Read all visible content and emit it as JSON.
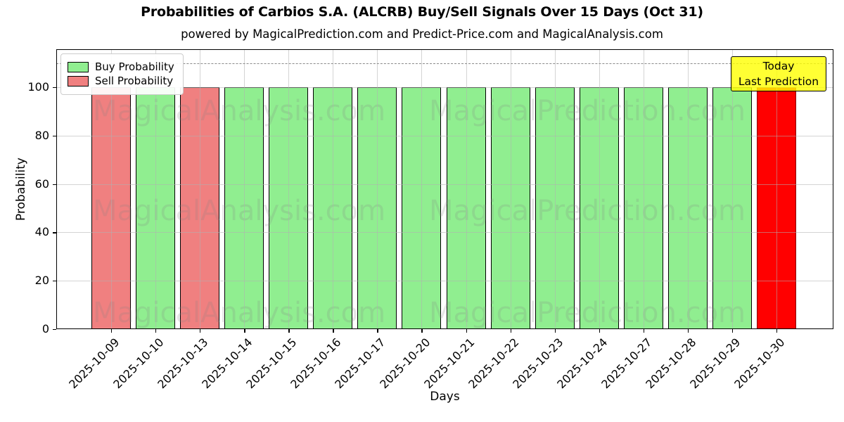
{
  "title": "Probabilities of Carbios S.A. (ALCRB) Buy/Sell Signals Over 15 Days (Oct 31)",
  "subtitle": "powered by MagicalPrediction.com and Predict-Price.com and MagicalAnalysis.com",
  "axes": {
    "xlabel": "Days",
    "ylabel": "Probability",
    "yticks": [
      0,
      20,
      40,
      60,
      80,
      100
    ],
    "ylim": [
      0,
      116
    ],
    "grid": true,
    "dashed_guideline_y": 110
  },
  "legend": {
    "position": "upper-left",
    "items": [
      {
        "label": "Buy Probability",
        "color": "#90EE90"
      },
      {
        "label": "Sell Probability",
        "color": "#F08080"
      }
    ]
  },
  "annotation": {
    "line1": "Today",
    "line2": "Last Prediction",
    "bg_color": "#FFFF00",
    "border_color": "#000000"
  },
  "watermarks": {
    "left_text": "MagicalAnalysis.com",
    "right_text": "MagicalPrediction.com"
  },
  "colors": {
    "buy": "#90EE90",
    "sell": "#F08080",
    "today": "#FF0000",
    "bar_edge": "#000000",
    "today_edge": "#8B0000",
    "grid": "#b0b0b0",
    "dashed_line": "#8a8a8a",
    "watermark": "#808080",
    "annotation_bg": "#FFFF00"
  },
  "chart_data": {
    "type": "bar",
    "title": "Probabilities of Carbios S.A. (ALCRB) Buy/Sell Signals Over 15 Days (Oct 31)",
    "xlabel": "Days",
    "ylabel": "Probability",
    "ylim": [
      0,
      116
    ],
    "grid": true,
    "legend_position": "upper-left",
    "dashed_guideline_y": 110,
    "categories": [
      "2025-10-09",
      "2025-10-10",
      "2025-10-13",
      "2025-10-14",
      "2025-10-15",
      "2025-10-16",
      "2025-10-17",
      "2025-10-20",
      "2025-10-21",
      "2025-10-22",
      "2025-10-23",
      "2025-10-24",
      "2025-10-27",
      "2025-10-28",
      "2025-10-29",
      "2025-10-30"
    ],
    "values": [
      100,
      100,
      100,
      100,
      100,
      100,
      100,
      100,
      100,
      100,
      100,
      100,
      100,
      100,
      100,
      100
    ],
    "signals": [
      "sell",
      "buy",
      "sell",
      "buy",
      "buy",
      "buy",
      "buy",
      "buy",
      "buy",
      "buy",
      "buy",
      "buy",
      "buy",
      "buy",
      "buy",
      "today"
    ],
    "series": [
      {
        "name": "Buy Probability",
        "color": "#90EE90",
        "values": [
          0,
          100,
          0,
          100,
          100,
          100,
          100,
          100,
          100,
          100,
          100,
          100,
          100,
          100,
          100,
          0
        ]
      },
      {
        "name": "Sell Probability",
        "color": "#F08080",
        "values": [
          100,
          0,
          100,
          0,
          0,
          0,
          0,
          0,
          0,
          0,
          0,
          0,
          0,
          0,
          0,
          0
        ]
      },
      {
        "name": "Today / Last Prediction",
        "color": "#FF0000",
        "values": [
          0,
          0,
          0,
          0,
          0,
          0,
          0,
          0,
          0,
          0,
          0,
          0,
          0,
          0,
          0,
          100
        ]
      }
    ]
  }
}
